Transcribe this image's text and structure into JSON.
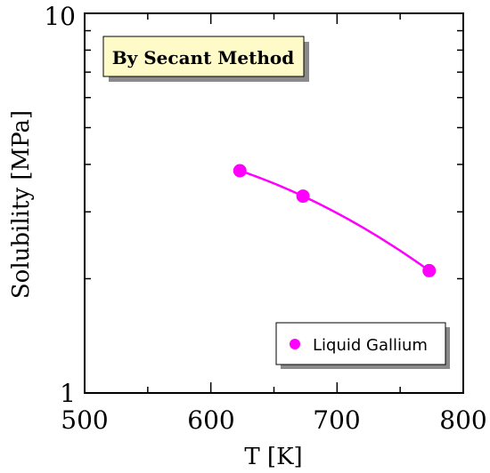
{
  "chart_data": {
    "type": "scatter",
    "xlabel": "T [K]",
    "ylabel": "Solubility [MPa]",
    "xlim": [
      500,
      800
    ],
    "ylim": [
      1,
      10
    ],
    "yscale": "log",
    "x_ticks": [
      "500",
      "600",
      "700",
      "800"
    ],
    "x_tick_values": [
      500,
      600,
      700,
      800
    ],
    "y_ticks": [
      "1",
      "10"
    ],
    "y_tick_values": [
      1,
      10
    ],
    "grid": false,
    "legend_position": "bottom-right",
    "annotation": "By Secant Method",
    "series": [
      {
        "name": "Liquid Gallium",
        "color": "#ff00ff",
        "marker": "circle",
        "fit_line": true,
        "x": [
          623,
          673,
          773
        ],
        "y": [
          3.85,
          3.3,
          2.1
        ]
      }
    ]
  }
}
